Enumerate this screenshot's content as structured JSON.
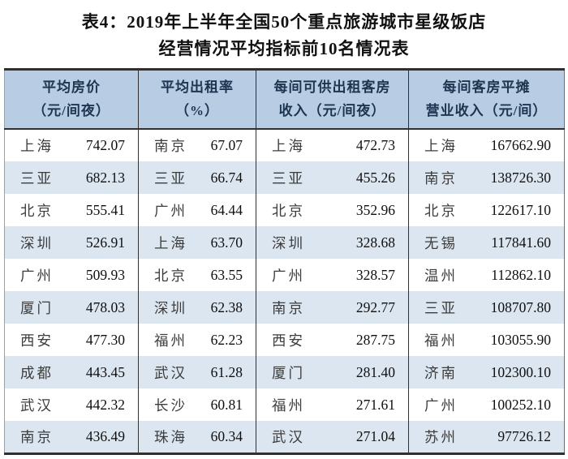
{
  "title": {
    "line1": "表4：2019年上半年全国50个重点旅游城市星级饭店",
    "line2": "经营情况平均指标前10名情况表"
  },
  "table": {
    "columns": [
      {
        "header_line1": "平均房价",
        "header_line2": "（元/间夜）",
        "rows": [
          [
            "上海",
            "742.07"
          ],
          [
            "三亚",
            "682.13"
          ],
          [
            "北京",
            "555.41"
          ],
          [
            "深圳",
            "526.91"
          ],
          [
            "广州",
            "509.93"
          ],
          [
            "厦门",
            "478.03"
          ],
          [
            "西安",
            "477.30"
          ],
          [
            "成都",
            "443.45"
          ],
          [
            "武汉",
            "442.32"
          ],
          [
            "南京",
            "436.49"
          ]
        ]
      },
      {
        "header_line1": "平均出租率",
        "header_line2": "（%）",
        "rows": [
          [
            "南京",
            "67.07"
          ],
          [
            "三亚",
            "66.74"
          ],
          [
            "广州",
            "64.44"
          ],
          [
            "上海",
            "63.70"
          ],
          [
            "北京",
            "63.55"
          ],
          [
            "深圳",
            "62.38"
          ],
          [
            "福州",
            "62.23"
          ],
          [
            "武汉",
            "61.28"
          ],
          [
            "长沙",
            "60.81"
          ],
          [
            "珠海",
            "60.34"
          ]
        ]
      },
      {
        "header_line1": "每间可供出租客房",
        "header_line2": "收入（元/间夜）",
        "rows": [
          [
            "上海",
            "472.73"
          ],
          [
            "三亚",
            "455.26"
          ],
          [
            "北京",
            "352.96"
          ],
          [
            "深圳",
            "328.68"
          ],
          [
            "广州",
            "328.57"
          ],
          [
            "南京",
            "292.77"
          ],
          [
            "西安",
            "287.75"
          ],
          [
            "厦门",
            "281.40"
          ],
          [
            "福州",
            "271.61"
          ],
          [
            "武汉",
            "271.04"
          ]
        ]
      },
      {
        "header_line1": "每间客房平摊",
        "header_line2": "营业收入（元/间）",
        "rows": [
          [
            "上海",
            "167662.90"
          ],
          [
            "南京",
            "138726.30"
          ],
          [
            "北京",
            "122617.10"
          ],
          [
            "无锡",
            "117841.60"
          ],
          [
            "温州",
            "112862.10"
          ],
          [
            "三亚",
            "108707.80"
          ],
          [
            "福州",
            "103055.90"
          ],
          [
            "济南",
            "102300.10"
          ],
          [
            "广州",
            "100252.10"
          ],
          [
            "苏州",
            "97726.12"
          ]
        ]
      }
    ]
  },
  "colors": {
    "header_bg": "#b8cce4",
    "stripe_bg": "#dce6f1",
    "border": "#303030"
  }
}
